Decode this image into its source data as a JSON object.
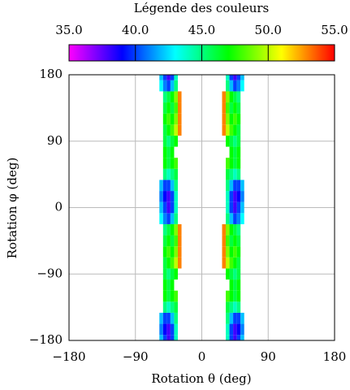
{
  "chart_data": {
    "type": "heatmap",
    "colorbar_title": "Légende des couleurs",
    "xlabel": "Rotation θ (deg)",
    "ylabel": "Rotation φ (deg)",
    "clim": [
      35,
      55
    ],
    "cticks": [
      {
        "value": 35,
        "label": "35.0"
      },
      {
        "value": 40,
        "label": "40.0"
      },
      {
        "value": 45,
        "label": "45.0"
      },
      {
        "value": 50,
        "label": "50.0"
      },
      {
        "value": 55,
        "label": "55.0"
      }
    ],
    "colormap": [
      "#ff00ff",
      "#0000ff",
      "#00ffff",
      "#00ff00",
      "#ffff00",
      "#ff0000"
    ],
    "xlim": [
      -180,
      180
    ],
    "ylim": [
      -180,
      180
    ],
    "xticks": [
      {
        "value": -180,
        "label": "−180"
      },
      {
        "value": -90,
        "label": "−90"
      },
      0,
      90,
      180
    ],
    "yticks": [
      {
        "value": -180,
        "label": "−180"
      },
      {
        "value": -90,
        "label": "−90"
      },
      0,
      90,
      180
    ],
    "grid": true,
    "x": [
      -55,
      -50,
      -45,
      -40,
      -35,
      -30,
      30,
      35,
      40,
      45,
      50,
      55
    ],
    "y": [
      -180,
      -165,
      -150,
      -135,
      -120,
      -105,
      -90,
      -75,
      -60,
      -45,
      -30,
      -15,
      0,
      15,
      30,
      45,
      60,
      75,
      90,
      105,
      120,
      135,
      150,
      165,
      180
    ],
    "z": [
      [
        42,
        40,
        38,
        40,
        44,
        null,
        null,
        44,
        40,
        38,
        40,
        42
      ],
      [
        41,
        39,
        38,
        40,
        44,
        null,
        null,
        44,
        40,
        38,
        39,
        41
      ],
      [
        42,
        40,
        40,
        42,
        45,
        null,
        null,
        45,
        42,
        40,
        40,
        42
      ],
      [
        null,
        45,
        44,
        45,
        46,
        null,
        null,
        46,
        45,
        44,
        45,
        null
      ],
      [
        null,
        47,
        46,
        47,
        48,
        null,
        null,
        48,
        47,
        46,
        47,
        null
      ],
      [
        null,
        47,
        46,
        47,
        null,
        null,
        null,
        null,
        47,
        46,
        47,
        null
      ],
      [
        null,
        46,
        45,
        46,
        47,
        null,
        null,
        47,
        46,
        45,
        46,
        null
      ],
      [
        null,
        46,
        47,
        48,
        50,
        53,
        53,
        50,
        48,
        47,
        46,
        null
      ],
      [
        null,
        47,
        48,
        47,
        49,
        53,
        53,
        49,
        47,
        48,
        47,
        null
      ],
      [
        null,
        46,
        47,
        46,
        48,
        53,
        53,
        48,
        46,
        47,
        46,
        null
      ],
      [
        null,
        45,
        46,
        47,
        49,
        53,
        53,
        49,
        47,
        46,
        45,
        null
      ],
      [
        43,
        41,
        40,
        42,
        45,
        null,
        null,
        45,
        42,
        40,
        41,
        43
      ],
      [
        42,
        40,
        38,
        40,
        44,
        null,
        null,
        44,
        40,
        38,
        40,
        42
      ],
      [
        41,
        39,
        38,
        40,
        44,
        null,
        null,
        44,
        40,
        38,
        39,
        41
      ],
      [
        42,
        40,
        40,
        42,
        45,
        null,
        null,
        45,
        42,
        40,
        40,
        42
      ],
      [
        null,
        45,
        44,
        45,
        46,
        null,
        null,
        46,
        45,
        44,
        45,
        null
      ],
      [
        null,
        47,
        46,
        47,
        48,
        null,
        null,
        48,
        47,
        46,
        47,
        null
      ],
      [
        null,
        47,
        46,
        47,
        null,
        null,
        null,
        null,
        47,
        46,
        47,
        null
      ],
      [
        null,
        46,
        45,
        46,
        47,
        null,
        null,
        47,
        46,
        45,
        46,
        null
      ],
      [
        null,
        46,
        47,
        48,
        50,
        53,
        53,
        50,
        48,
        47,
        46,
        null
      ],
      [
        null,
        47,
        48,
        47,
        49,
        53,
        53,
        49,
        47,
        48,
        47,
        null
      ],
      [
        null,
        46,
        47,
        46,
        48,
        53,
        53,
        48,
        46,
        47,
        46,
        null
      ],
      [
        null,
        45,
        46,
        47,
        49,
        53,
        53,
        49,
        47,
        46,
        45,
        null
      ],
      [
        43,
        41,
        40,
        42,
        45,
        null,
        null,
        45,
        42,
        40,
        41,
        43
      ],
      [
        42,
        40,
        38,
        40,
        44,
        null,
        null,
        44,
        40,
        38,
        40,
        42
      ]
    ]
  }
}
